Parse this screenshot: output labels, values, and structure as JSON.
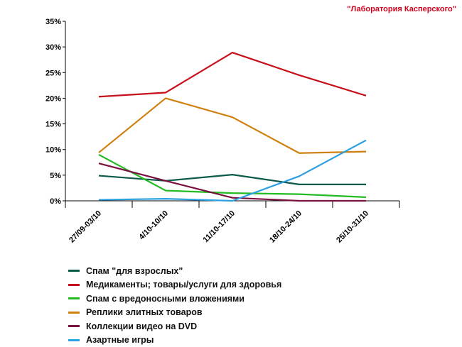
{
  "watermark": "\"Лаборатория Касперского\"",
  "chart_data": {
    "type": "line",
    "title": "",
    "xlabel": "",
    "ylabel": "",
    "categories": [
      "27/09-03/10",
      "4/10-10/10",
      "11/10-17/10",
      "18/10-24/10",
      "25/10-31/10"
    ],
    "ylim": [
      0,
      35
    ],
    "yticks": [
      0,
      5,
      10,
      15,
      20,
      25,
      30,
      35
    ],
    "ytick_labels": [
      "0%",
      "5%",
      "10%",
      "15%",
      "20%",
      "25%",
      "30%",
      "35%"
    ],
    "grid": false,
    "legend_position": "bottom",
    "series": [
      {
        "name": "Спам \"для взрослых\"",
        "color": "#0b5a4a",
        "values": [
          4.9,
          3.9,
          5.1,
          3.2,
          3.2
        ]
      },
      {
        "name": "Медикаменты; товары/услуги для здоровья",
        "color": "#c8101a",
        "values": [
          20.3,
          21.1,
          28.9,
          24.5,
          20.5
        ]
      },
      {
        "name": "Спам с вредоносными вложениями",
        "color": "#22bb22",
        "values": [
          9.0,
          2.0,
          1.5,
          1.3,
          0.7
        ]
      },
      {
        "name": "Реплики элитных товаров",
        "color": "#d08010",
        "values": [
          9.4,
          20.0,
          16.3,
          9.3,
          9.6
        ]
      },
      {
        "name": "Коллекции видео на DVD",
        "color": "#7a1040",
        "values": [
          7.3,
          3.9,
          0.6,
          0.0,
          0.0
        ]
      },
      {
        "name": "Азартные игры",
        "color": "#2aa0e0",
        "values": [
          0.2,
          0.4,
          0.0,
          4.8,
          11.8
        ]
      }
    ]
  }
}
